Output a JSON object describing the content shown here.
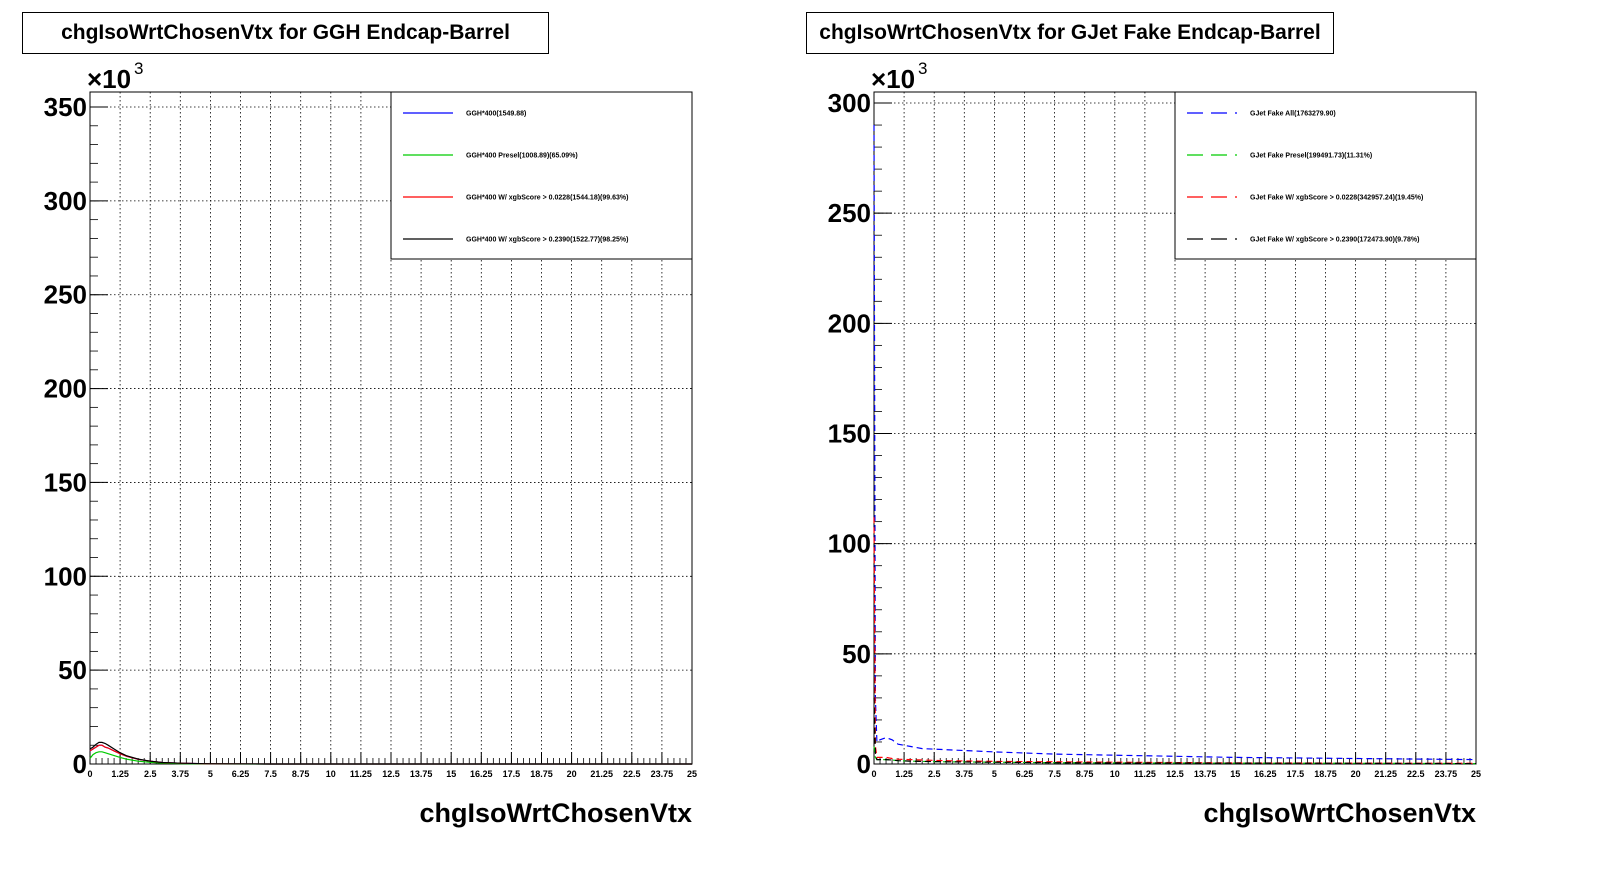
{
  "chart_data": [
    {
      "type": "line",
      "title": "chgIsoWrtChosenVtx for GGH Endcap-Barrel",
      "xlabel": "chgIsoWrtChosenVtx",
      "ylabel": "",
      "y_multiplier_label": "×10",
      "y_multiplier_exponent": "3",
      "xlim": [
        0,
        25
      ],
      "ylim": [
        0,
        358
      ],
      "grid": true,
      "legend_position": "top-right",
      "yticks": [
        0,
        50,
        100,
        150,
        200,
        250,
        300,
        350
      ],
      "xticks": [
        "0",
        "1.25",
        "2.5",
        "3.75",
        "5",
        "6.25",
        "7.5",
        "8.75",
        "10",
        "11.25",
        "12.5",
        "13.75",
        "15",
        "16.25",
        "17.5",
        "18.75",
        "20",
        "21.25",
        "22.5",
        "23.75",
        "25"
      ],
      "x": [
        0,
        0.125,
        0.25,
        0.375,
        0.5,
        0.625,
        0.75,
        1.0,
        1.25,
        1.5,
        2.0,
        2.5,
        3.0,
        3.75,
        5,
        7.5,
        10,
        25
      ],
      "series": [
        {
          "name": "GGH*400(1549.88)",
          "color": "#0000ff",
          "dash": "solid",
          "values": [
            7,
            8,
            9,
            10,
            10,
            9,
            8.5,
            7,
            5.5,
            4.2,
            2.5,
            1.5,
            0.8,
            0.4,
            0.1,
            0,
            0,
            0
          ]
        },
        {
          "name": "GGH*400 Presel(1008.89)(65.09%)",
          "color": "#00cc00",
          "dash": "solid",
          "values": [
            3,
            5,
            6,
            6.5,
            6.5,
            6,
            5.5,
            4.5,
            3.5,
            2.6,
            1.5,
            0.9,
            0.5,
            0.2,
            0.05,
            0,
            0,
            0
          ]
        },
        {
          "name": "GGH*400 W/ xgbScore > 0.0228(1544.18)(99.63%)",
          "color": "#ff0000",
          "dash": "solid",
          "values": [
            7,
            8,
            9,
            10,
            10,
            9,
            8.5,
            7,
            5.5,
            4.2,
            2.5,
            1.5,
            0.8,
            0.4,
            0.1,
            0,
            0,
            0
          ]
        },
        {
          "name": "GGH*400 W/ xgbScore > 0.2390(1522.77)(98.25%)",
          "color": "#000000",
          "dash": "solid",
          "values": [
            8,
            9,
            10.5,
            11.5,
            11.5,
            11,
            10,
            8,
            6,
            4.5,
            2.6,
            1.5,
            0.8,
            0.4,
            0.1,
            0,
            0,
            0
          ]
        }
      ]
    },
    {
      "type": "line",
      "title": "chgIsoWrtChosenVtx for GJet Fake Endcap-Barrel",
      "xlabel": "chgIsoWrtChosenVtx",
      "ylabel": "",
      "y_multiplier_label": "×10",
      "y_multiplier_exponent": "3",
      "xlim": [
        0,
        25
      ],
      "ylim": [
        0,
        305
      ],
      "grid": true,
      "legend_position": "top-right",
      "yticks": [
        0,
        50,
        100,
        150,
        200,
        250,
        300
      ],
      "xticks": [
        "0",
        "1.25",
        "2.5",
        "3.75",
        "5",
        "6.25",
        "7.5",
        "8.75",
        "10",
        "11.25",
        "12.5",
        "13.75",
        "15",
        "16.25",
        "17.5",
        "18.75",
        "20",
        "21.25",
        "22.5",
        "23.75",
        "25"
      ],
      "x": [
        0,
        0.06,
        0.12,
        0.25,
        0.5,
        0.75,
        1.0,
        1.5,
        2.0,
        3.0,
        5,
        7.5,
        10,
        15,
        20,
        25
      ],
      "series": [
        {
          "name": "GJet Fake All(1763279.90)",
          "color": "#0000ff",
          "dash": "dashed",
          "values": [
            290,
            30,
            10,
            11,
            12,
            11,
            9,
            8,
            7,
            6.5,
            5.5,
            4.5,
            4,
            3,
            2.5,
            2
          ]
        },
        {
          "name": "GJet Fake Presel(199491.73)(11.31%)",
          "color": "#00cc00",
          "dash": "dashed",
          "values": [
            8,
            3,
            2,
            2,
            2,
            1.8,
            1.5,
            1.3,
            1.2,
            1,
            0.8,
            0.6,
            0.5,
            0.4,
            0.3,
            0.2
          ]
        },
        {
          "name": "GJet Fake W/ xgbScore > 0.0228(342957.24)(19.45%)",
          "color": "#ff0000",
          "dash": "dashed",
          "values": [
            112,
            8,
            3,
            3,
            3,
            2.5,
            2.2,
            2,
            1.8,
            1.5,
            1.2,
            1,
            0.8,
            0.5,
            0.4,
            0.3
          ]
        },
        {
          "name": "GJet Fake W/ xgbScore > 0.2390(172473.90)(9.78%)",
          "color": "#000000",
          "dash": "dashed",
          "values": [
            30,
            5,
            2,
            2,
            2,
            1.8,
            1.5,
            1.3,
            1.2,
            1,
            0.8,
            0.6,
            0.5,
            0.4,
            0.3,
            0.2
          ]
        }
      ]
    }
  ]
}
